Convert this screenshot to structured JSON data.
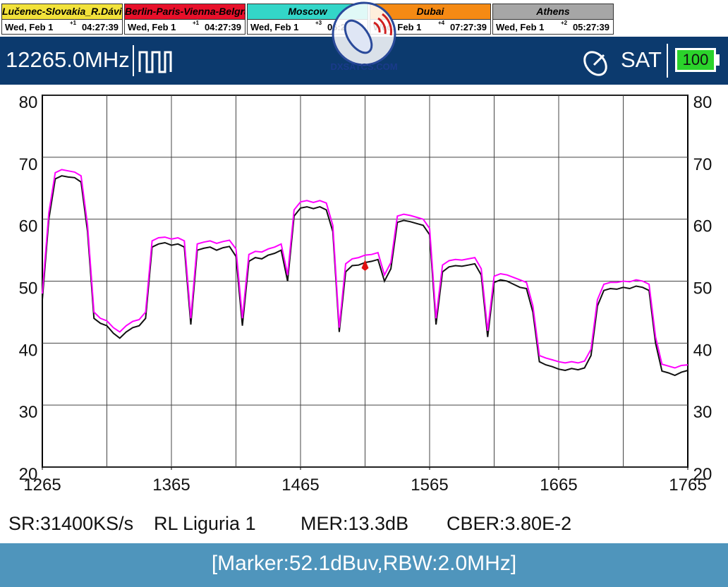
{
  "clocks": [
    {
      "city": "Lučenec-Slovakia_R.Dávid",
      "color": "#f2e23a",
      "date": "Wed, Feb 1",
      "offset": "+1",
      "time": "04:27:39"
    },
    {
      "city": "Berlin-Paris-Vienna-Belgrade",
      "color": "#e8102a",
      "date": "Wed, Feb 1",
      "offset": "+1",
      "time": "04:27:39"
    },
    {
      "city": "Moscow",
      "color": "#33d6c8",
      "date": "Wed, Feb 1",
      "offset": "+3",
      "time": "06:27:39"
    },
    {
      "city": "Dubai",
      "color": "#f58a14",
      "date": "Wed, Feb 1",
      "offset": "+4",
      "time": "07:27:39"
    },
    {
      "city": "Athens",
      "color": "#a6a6a6",
      "date": "Wed, Feb 1",
      "offset": "+2",
      "time": "05:27:39"
    }
  ],
  "logo": "DXSATCS.COM",
  "header": {
    "frequency": "12265.0MHz",
    "mode": "SAT",
    "battery": "100"
  },
  "chart_data": {
    "type": "line",
    "x": [
      1265,
      1270,
      1275,
      1280,
      1285,
      1290,
      1295,
      1300,
      1305,
      1310,
      1315,
      1320,
      1325,
      1330,
      1335,
      1340,
      1345,
      1350,
      1355,
      1360,
      1365,
      1370,
      1375,
      1380,
      1385,
      1390,
      1395,
      1400,
      1405,
      1410,
      1415,
      1420,
      1425,
      1430,
      1435,
      1440,
      1445,
      1450,
      1455,
      1460,
      1465,
      1470,
      1475,
      1480,
      1485,
      1490,
      1495,
      1500,
      1505,
      1510,
      1515,
      1520,
      1525,
      1530,
      1535,
      1540,
      1545,
      1550,
      1555,
      1560,
      1565,
      1570,
      1575,
      1580,
      1585,
      1590,
      1595,
      1600,
      1605,
      1610,
      1615,
      1620,
      1625,
      1630,
      1635,
      1640,
      1645,
      1650,
      1655,
      1660,
      1665,
      1670,
      1675,
      1680,
      1685,
      1690,
      1695,
      1700,
      1705,
      1710,
      1715,
      1720,
      1725,
      1730,
      1735,
      1740,
      1745,
      1750,
      1755,
      1760,
      1765
    ],
    "series": [
      {
        "color": "#111111",
        "values": [
          47,
          60,
          66.5,
          67,
          66.8,
          66.7,
          66,
          58,
          44,
          43.2,
          42.8,
          41.6,
          40.8,
          41.8,
          42.5,
          42.8,
          44,
          55.5,
          56,
          56.2,
          55.8,
          56,
          55.5,
          43,
          55,
          55.3,
          55.5,
          55,
          55.4,
          55.6,
          54,
          42.8,
          53.2,
          53.8,
          53.6,
          54.2,
          54.5,
          55,
          50,
          60.5,
          61.8,
          62,
          61.7,
          62,
          61.5,
          58,
          41.8,
          51.5,
          52.5,
          52.6,
          53,
          53.2,
          53.5,
          50,
          52,
          59.5,
          59.8,
          59.6,
          59.3,
          59,
          57.5,
          43,
          51.5,
          52.3,
          52.5,
          52.4,
          52.6,
          52.8,
          51,
          41,
          49.8,
          50.2,
          50,
          49.5,
          49,
          48.8,
          45,
          37,
          36.5,
          36.2,
          35.8,
          35.6,
          35.9,
          35.7,
          36,
          38,
          46,
          48.5,
          48.8,
          48.7,
          49,
          48.8,
          49.2,
          49,
          48.5,
          40,
          35.5,
          35.2,
          34.8,
          35.3,
          35.6
        ]
      },
      {
        "color": "#ff00ff",
        "values": [
          48,
          61,
          67.5,
          68,
          67.8,
          67.6,
          67,
          59,
          45,
          44,
          43.6,
          42.5,
          41.8,
          42.8,
          43.5,
          43.8,
          45,
          56.5,
          57,
          57.1,
          56.8,
          57,
          56.5,
          44,
          56,
          56.3,
          56.5,
          56.1,
          56.4,
          56.6,
          55.2,
          44,
          54.3,
          54.8,
          54.7,
          55.2,
          55.5,
          56,
          51,
          61.5,
          62.8,
          63,
          62.7,
          63,
          62.6,
          59,
          42.5,
          52.8,
          53.6,
          53.8,
          54.2,
          54.3,
          54.6,
          51,
          53,
          60.5,
          60.8,
          60.6,
          60.3,
          60,
          58.5,
          44,
          52.6,
          53.3,
          53.5,
          53.4,
          53.6,
          53.8,
          52,
          42,
          50.8,
          51.2,
          51,
          50.6,
          50.2,
          49.8,
          46,
          38,
          37.6,
          37.3,
          37,
          36.8,
          37,
          36.8,
          37.1,
          39,
          47,
          49.5,
          49.8,
          49.8,
          50,
          49.9,
          50.2,
          50,
          49.5,
          41,
          36.6,
          36.3,
          36,
          36.4,
          36.5
        ]
      }
    ],
    "marker": {
      "x": 1515,
      "value": 52.1,
      "color": "#e01010"
    },
    "xlim": [
      1265,
      1765
    ],
    "xticks": [
      1265,
      1365,
      1465,
      1565,
      1665,
      1765
    ],
    "xgrid": [
      1315,
      1365,
      1415,
      1465,
      1515,
      1565,
      1615,
      1665,
      1715
    ],
    "ylim": [
      20,
      80
    ],
    "yticks": [
      20,
      30,
      40,
      50,
      60,
      70,
      80
    ],
    "grid": true
  },
  "status": [
    "SR:31400KS/s",
    "RL Liguria 1",
    "MER:13.3dB",
    "CBER:3.80E-2"
  ],
  "footer": "[Marker:52.1dBuv,RBW:2.0MHz]"
}
